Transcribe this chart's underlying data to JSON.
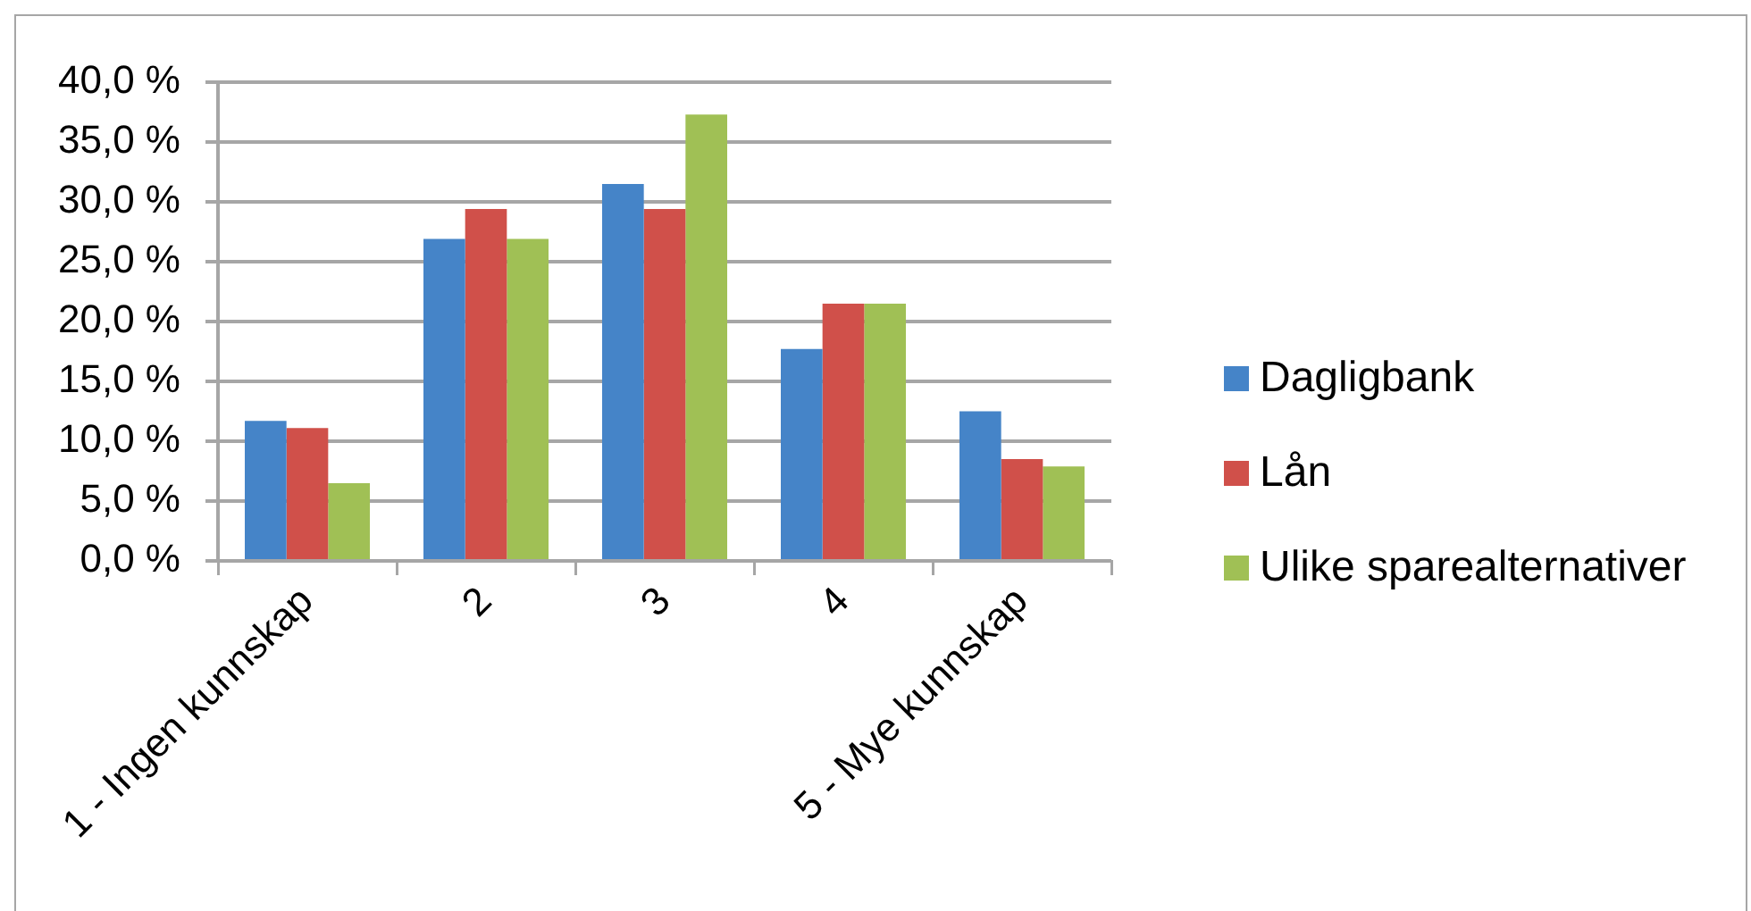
{
  "chart_data": {
    "type": "bar",
    "categories": [
      "1 - Ingen kunnskap",
      "2",
      "3",
      "4",
      "5 - Mye kunnskap"
    ],
    "series": [
      {
        "name": "Dagligbank",
        "color": "#4584c8",
        "values": [
          11.7,
          26.9,
          31.5,
          17.7,
          12.5
        ]
      },
      {
        "name": "Lån",
        "color": "#d0504a",
        "values": [
          11.1,
          29.4,
          29.4,
          21.5,
          8.5
        ]
      },
      {
        "name": "Ulike sparealternativer",
        "color": "#a0c055",
        "values": [
          6.5,
          26.9,
          37.3,
          21.5,
          7.9
        ]
      }
    ],
    "ylim": [
      0,
      40
    ],
    "yticks": [
      {
        "value": 0,
        "label": "0,0 %"
      },
      {
        "value": 5,
        "label": "5,0 %"
      },
      {
        "value": 10,
        "label": "10,0 %"
      },
      {
        "value": 15,
        "label": "15,0 %"
      },
      {
        "value": 20,
        "label": "20,0 %"
      },
      {
        "value": 25,
        "label": "25,0 %"
      },
      {
        "value": 30,
        "label": "30,0 %"
      },
      {
        "value": 35,
        "label": "35,0 %"
      },
      {
        "value": 40,
        "label": "40,0 %"
      }
    ],
    "grid": "y",
    "legend": "right"
  }
}
